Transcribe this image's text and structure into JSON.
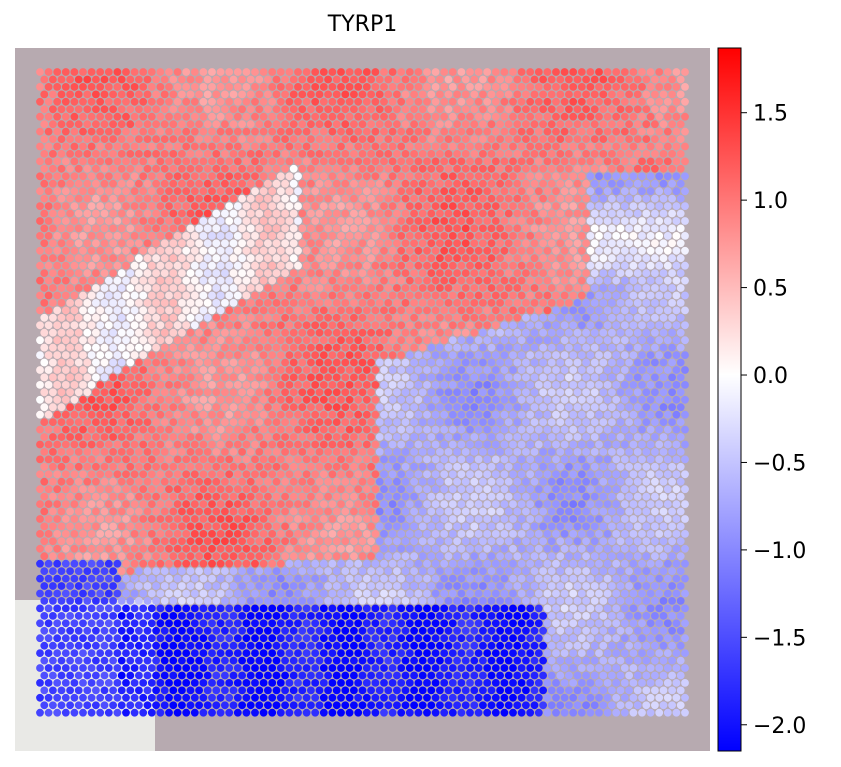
{
  "chart_data": {
    "type": "spatial-scatter",
    "title": "TYRP1",
    "xlabel": "",
    "ylabel": "",
    "colorbar": {
      "label": "",
      "range": [
        -2.15,
        1.87
      ],
      "ticks": [
        1.5,
        1.0,
        0.5,
        0.0,
        -0.5,
        -1.0,
        -1.5,
        -2.0
      ],
      "tick_labels": [
        "1.5",
        "1.0",
        "0.5",
        "0.0",
        "−0.5",
        "−1.0",
        "−1.5",
        "−2.0"
      ],
      "colormap": "bwr",
      "colors": {
        "low": "#0000ff",
        "mid": "#ffffff",
        "high": "#ff0000"
      }
    },
    "grid": false,
    "background": "H&E tissue image",
    "expression_regions": [
      {
        "region": "upper tissue (top half and left side)",
        "level": 1.1
      },
      {
        "region": "upper-left white band",
        "level": 0.1
      },
      {
        "region": "central-right lower area",
        "level": -0.8
      },
      {
        "region": "bottom band",
        "level": -2.0
      }
    ]
  }
}
